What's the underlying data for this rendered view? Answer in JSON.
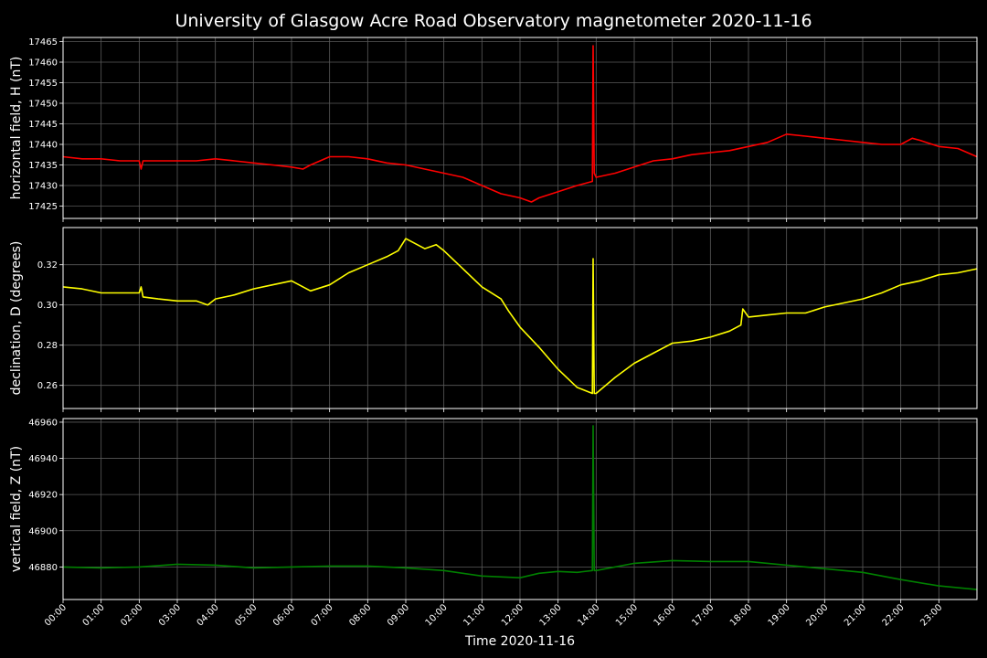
{
  "chart_data": {
    "type": "line",
    "title": "University of Glasgow Acre Road Observatory magnetometer 2020-11-16",
    "xlabel": "Time 2020-11-16",
    "x_ticks": [
      "00:00",
      "01:00",
      "02:00",
      "03:00",
      "04:00",
      "05:00",
      "06:00",
      "07:00",
      "08:00",
      "09:00",
      "10:00",
      "11:00",
      "12:00",
      "13:00",
      "14:00",
      "15:00",
      "16:00",
      "17:00",
      "18:00",
      "19:00",
      "20:00",
      "21:00",
      "22:00",
      "23:00"
    ],
    "x_range_hours": [
      0,
      24
    ],
    "grid": true,
    "background": "#000000",
    "panels": [
      {
        "ylabel": "horizontal field, H (nT)",
        "color": "#ff0000",
        "ylim": [
          17422,
          17466
        ],
        "yticks": [
          "17425",
          "17430",
          "17435",
          "17440",
          "17445",
          "17450",
          "17455",
          "17460",
          "17465"
        ],
        "series": [
          {
            "x": [
              0,
              0.5,
              1,
              1.5,
              2,
              2.05,
              2.1,
              2.5,
              3,
              3.5,
              4,
              4.5,
              5,
              5.5,
              6,
              6.3,
              6.5,
              7,
              7.5,
              8,
              8.5,
              9,
              9.5,
              10,
              10.5,
              11,
              11.5,
              12,
              12.3,
              12.5,
              13,
              13.5,
              13.9,
              13.92,
              13.95,
              14.0,
              14.5,
              15,
              15.5,
              16,
              16.5,
              17,
              17.5,
              18,
              18.5,
              19,
              19.5,
              20,
              20.5,
              21,
              21.5,
              22,
              22.3,
              22.5,
              23,
              23.5,
              24
            ],
            "y": [
              17437,
              17436.5,
              17436.5,
              17436,
              17436,
              17434,
              17436,
              17436,
              17436,
              17436,
              17436.5,
              17436,
              17435.5,
              17435,
              17434.5,
              17434,
              17435,
              17437,
              17437,
              17436.5,
              17435.5,
              17435,
              17434,
              17433,
              17432,
              17430,
              17428,
              17427,
              17426,
              17427,
              17428.5,
              17430,
              17431,
              17464,
              17433,
              17432,
              17433,
              17434.5,
              17436,
              17436.5,
              17437.5,
              17438,
              17438.5,
              17439.5,
              17440.5,
              17442.5,
              17442,
              17441.5,
              17441,
              17440.5,
              17440,
              17440,
              17441.5,
              17441,
              17439.5,
              17439,
              17437
            ]
          }
        ]
      },
      {
        "ylabel": "declination, D (degrees)",
        "color": "#ffff00",
        "ylim": [
          0.2485,
          0.3385
        ],
        "yticks": [
          "0.26",
          "0.28",
          "0.30",
          "0.32"
        ],
        "series": [
          {
            "x": [
              0,
              0.5,
              1,
              1.5,
              2,
              2.05,
              2.1,
              2.5,
              3,
              3.5,
              3.8,
              4,
              4.5,
              5,
              5.5,
              6,
              6.5,
              7,
              7.5,
              8,
              8.5,
              8.8,
              9,
              9.5,
              9.8,
              10,
              10.5,
              11,
              11.5,
              11.7,
              12,
              12.5,
              13,
              13.5,
              13.9,
              13.92,
              13.95,
              14,
              14.5,
              15,
              15.5,
              16,
              16.5,
              17,
              17.5,
              17.8,
              17.85,
              18,
              18.5,
              19,
              19.5,
              20,
              20.5,
              21,
              21.5,
              22,
              22.5,
              23,
              23.5,
              24
            ],
            "y": [
              0.309,
              0.308,
              0.306,
              0.306,
              0.306,
              0.309,
              0.304,
              0.303,
              0.302,
              0.302,
              0.3,
              0.303,
              0.305,
              0.308,
              0.31,
              0.312,
              0.307,
              0.31,
              0.316,
              0.32,
              0.324,
              0.327,
              0.333,
              0.328,
              0.33,
              0.327,
              0.318,
              0.309,
              0.303,
              0.297,
              0.289,
              0.279,
              0.268,
              0.259,
              0.256,
              0.323,
              0.256,
              0.256,
              0.264,
              0.271,
              0.276,
              0.281,
              0.282,
              0.284,
              0.287,
              0.29,
              0.298,
              0.294,
              0.295,
              0.296,
              0.296,
              0.299,
              0.301,
              0.303,
              0.306,
              0.31,
              0.312,
              0.315,
              0.316,
              0.318
            ]
          }
        ]
      },
      {
        "ylabel": "vertical field, Z (nT)",
        "color": "#008000",
        "ylim": [
          46862,
          46962
        ],
        "yticks": [
          "46880",
          "46900",
          "46920",
          "46940",
          "46960"
        ],
        "series": [
          {
            "x": [
              0,
              1,
              2,
              3,
              4,
              5,
              6,
              7,
              8,
              9,
              10,
              11,
              12,
              12.5,
              13,
              13.5,
              13.9,
              13.92,
              13.95,
              14,
              15,
              16,
              17,
              18,
              19,
              20,
              21,
              22,
              23,
              24
            ],
            "y": [
              46880,
              46879.5,
              46880,
              46881.5,
              46881,
              46879.5,
              46880,
              46880.5,
              46880.5,
              46879.5,
              46878,
              46875,
              46874,
              46876.5,
              46877.5,
              46877,
              46878,
              46958,
              46878,
              46878,
              46882,
              46883.5,
              46883,
              46883,
              46881,
              46879,
              46877,
              46873,
              46869.5,
              46867.5
            ]
          }
        ]
      }
    ]
  }
}
